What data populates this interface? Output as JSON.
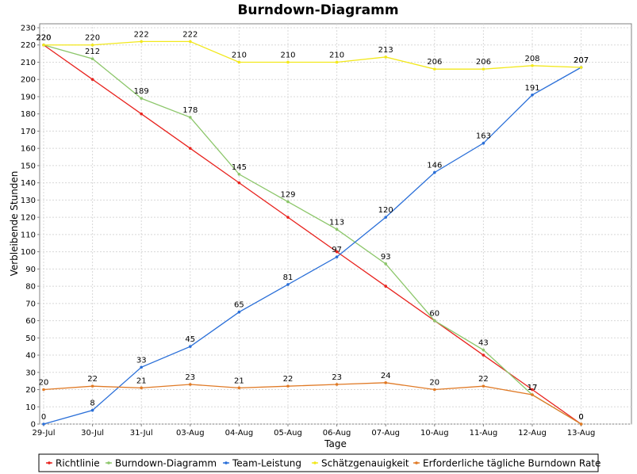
{
  "chart_data": {
    "type": "line",
    "title": "Burndown-Diagramm",
    "xlabel": "Tage",
    "ylabel": "Verbleibende Stunden",
    "ylim": [
      0,
      230
    ],
    "ytick_step": 10,
    "grid": true,
    "legend_position": "bottom",
    "categories": [
      "29-Jul",
      "30-Jul",
      "31-Jul",
      "03-Aug",
      "04-Aug",
      "05-Aug",
      "06-Aug",
      "07-Aug",
      "10-Aug",
      "11-Aug",
      "12-Aug",
      "13-Aug"
    ],
    "series": [
      {
        "name": "Richtlinie",
        "color": "#e8231e",
        "values": [
          220,
          200,
          180,
          160,
          140,
          120,
          100,
          80,
          60,
          40,
          20,
          0
        ],
        "labels": [
          null,
          null,
          null,
          null,
          null,
          null,
          null,
          null,
          null,
          null,
          null,
          null
        ]
      },
      {
        "name": "Burndown-Diagramm",
        "color": "#8cc66a",
        "values": [
          220,
          212,
          189,
          178,
          145,
          129,
          113,
          93,
          60,
          43,
          17,
          0
        ],
        "labels": [
          "220",
          "212",
          "189",
          "178",
          "145",
          "129",
          "113",
          "93",
          "60",
          "43",
          "17",
          "0"
        ]
      },
      {
        "name": "Team-Leistung",
        "color": "#2a6fd8",
        "values": [
          0,
          8,
          33,
          45,
          65,
          81,
          97,
          120,
          146,
          163,
          191,
          207
        ],
        "labels": [
          "0",
          "8",
          "33",
          "45",
          "65",
          "81",
          "97",
          "120",
          "146",
          "163",
          "191",
          "207"
        ]
      },
      {
        "name": "Schätzgenauigkeit",
        "color": "#f2e81c",
        "values": [
          220,
          220,
          222,
          222,
          210,
          210,
          210,
          213,
          206,
          206,
          208,
          207
        ],
        "labels": [
          "220",
          "220",
          "222",
          "222",
          "210",
          "210",
          "210",
          "213",
          "206",
          "206",
          "208",
          "207"
        ]
      },
      {
        "name": "Erforderliche tägliche Burndown Rate",
        "color": "#e07a26",
        "values": [
          20,
          22,
          21,
          23,
          21,
          22,
          23,
          24,
          20,
          22,
          17,
          0
        ],
        "labels": [
          "20",
          "22",
          "21",
          "23",
          "21",
          "22",
          "23",
          "24",
          "20",
          "22",
          "17",
          "0"
        ]
      }
    ]
  }
}
